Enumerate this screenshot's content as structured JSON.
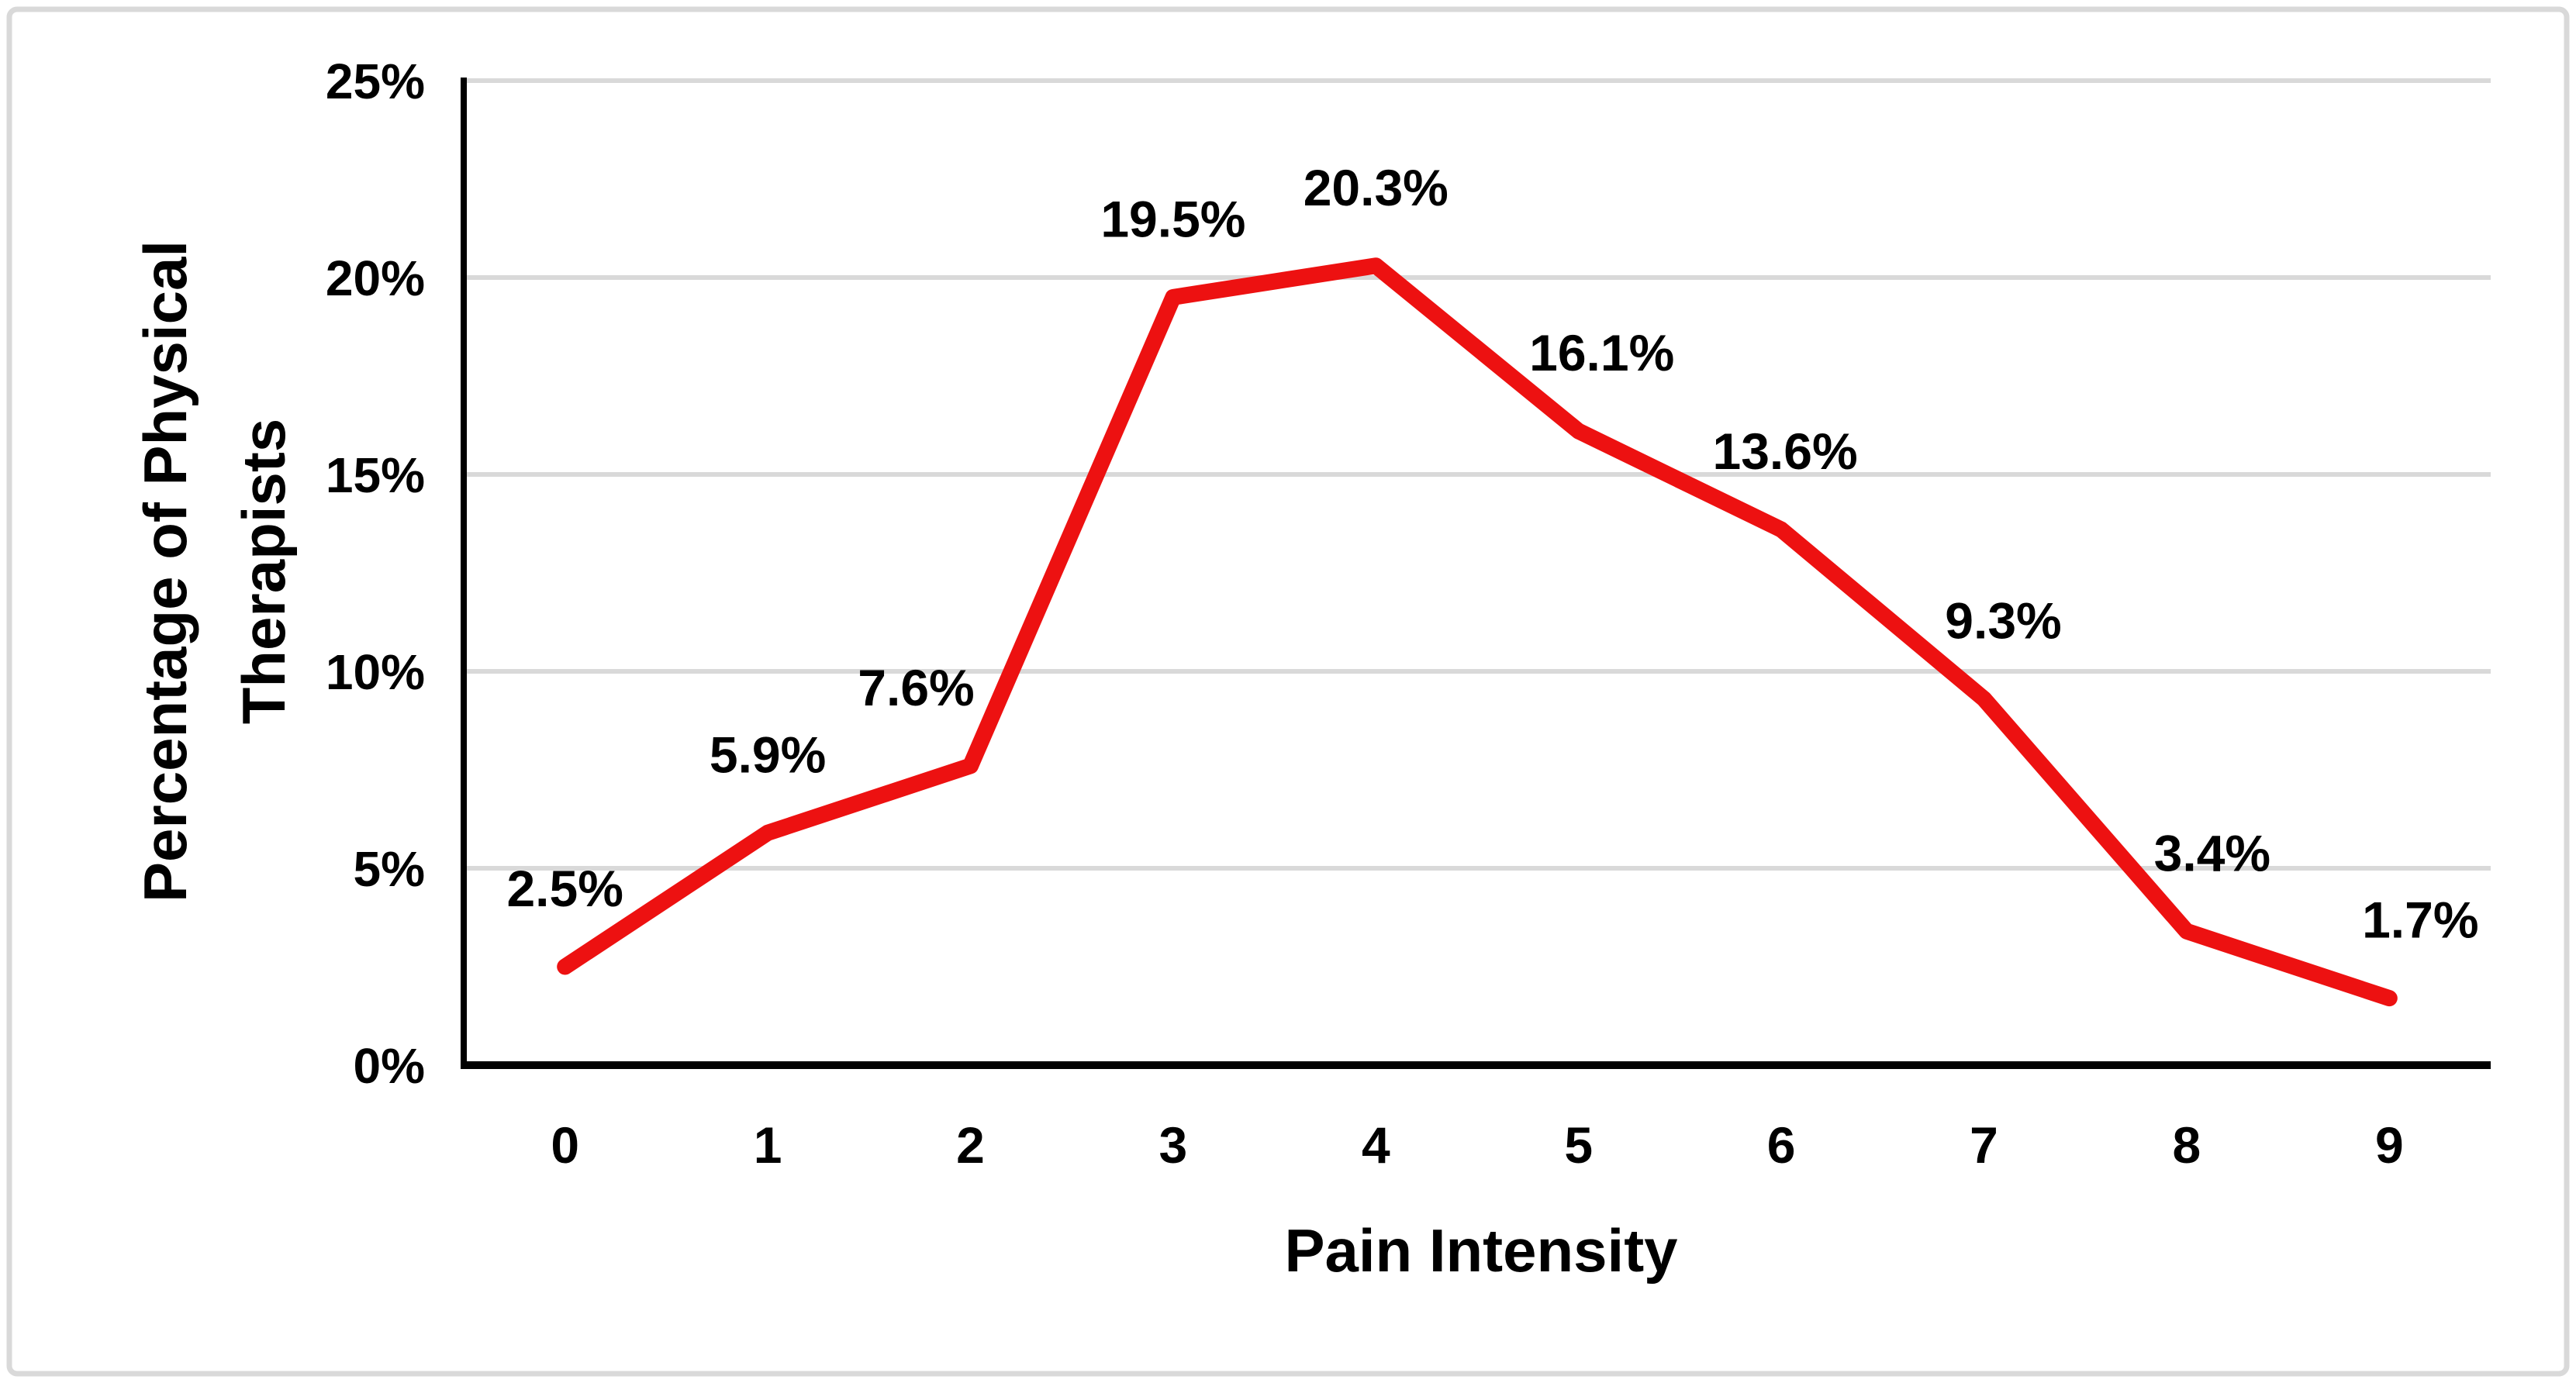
{
  "figure": {
    "background": "#ffffff",
    "border_color": "#d9d9d9"
  },
  "chart_data": {
    "type": "line",
    "title": "",
    "xlabel": "Pain Intensity",
    "ylabel": "Percentage of Physical Therapists",
    "ylabel_line1": "Percentage of Physical",
    "ylabel_line2": "Therapists",
    "categories": [
      "0",
      "1",
      "2",
      "3",
      "4",
      "5",
      "6",
      "7",
      "8",
      "9"
    ],
    "series": [
      {
        "name": "Percentage of Physical Therapists",
        "color": "#ed1111",
        "values": [
          2.5,
          5.9,
          7.6,
          19.5,
          20.3,
          16.1,
          13.6,
          9.3,
          3.4,
          1.7
        ]
      }
    ],
    "data_labels": [
      "2.5%",
      "5.9%",
      "7.6%",
      "19.5%",
      "20.3%",
      "16.1%",
      "13.6%",
      "9.3%",
      "3.4%",
      "1.7%"
    ],
    "y_tick_labels": [
      "0%",
      "5%",
      "10%",
      "15%",
      "20%",
      "25%"
    ],
    "y_tick_values": [
      0,
      5,
      10,
      15,
      20,
      25
    ],
    "ylim": [
      0,
      25
    ],
    "grid": "horizontal",
    "gridline_color": "#d9d9d9",
    "axis_color": "#000000",
    "label_color": "#000000",
    "legend": "none"
  }
}
